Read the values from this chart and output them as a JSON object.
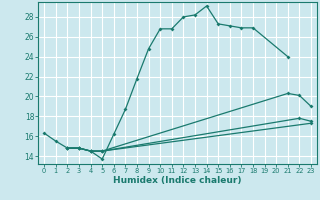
{
  "xlabel": "Humidex (Indice chaleur)",
  "xlim": [
    -0.5,
    23.5
  ],
  "ylim": [
    13.2,
    29.5
  ],
  "yticks": [
    14,
    16,
    18,
    20,
    22,
    24,
    26,
    28
  ],
  "xticks": [
    0,
    1,
    2,
    3,
    4,
    5,
    6,
    7,
    8,
    9,
    10,
    11,
    12,
    13,
    14,
    15,
    16,
    17,
    18,
    19,
    20,
    21,
    22,
    23
  ],
  "bg_color": "#cce8ee",
  "grid_color": "#ffffff",
  "line_color": "#1a7a6e",
  "line1_x": [
    0,
    1,
    2,
    3,
    4,
    5,
    6,
    7,
    8,
    9,
    10,
    11,
    12,
    13,
    14,
    15,
    16,
    17,
    18,
    21
  ],
  "line1_y": [
    16.3,
    15.5,
    14.8,
    14.8,
    14.5,
    13.7,
    16.2,
    18.7,
    21.8,
    24.8,
    26.8,
    26.8,
    28.0,
    28.2,
    29.1,
    27.3,
    27.1,
    26.9,
    26.9,
    24.0
  ],
  "line2_x": [
    2,
    3,
    4,
    5,
    21,
    22,
    23
  ],
  "line2_y": [
    14.8,
    14.8,
    14.5,
    14.5,
    20.3,
    20.1,
    19.0
  ],
  "line3_x": [
    2,
    3,
    4,
    5,
    22,
    23
  ],
  "line3_y": [
    14.8,
    14.8,
    14.5,
    14.5,
    17.8,
    17.5
  ],
  "line4_x": [
    2,
    3,
    4,
    5,
    23
  ],
  "line4_y": [
    14.8,
    14.8,
    14.5,
    14.5,
    17.3
  ]
}
